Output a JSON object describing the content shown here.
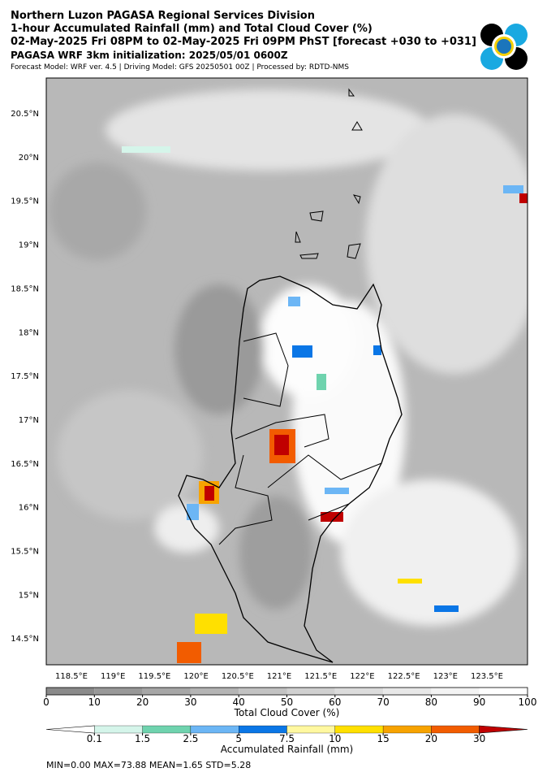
{
  "header": {
    "title": "Northern Luzon PAGASA Regional Services Division",
    "subtitle": "1-hour Accumulated Rainfall (mm) and Total Cloud Cover (%)",
    "period": "02-May-2025 Fri 08PM to 02-May-2025 Fri 09PM PhST [forecast +030 to +031]",
    "init": "PAGASA WRF 3km initialization: 2025/05/01 0600Z",
    "model": "Forecast Model: WRF ver. 4.5 | Driving Model: GFS 20250501 00Z | Processed by: RDTD-NMS"
  },
  "map": {
    "lat_labels": [
      "20.5°N",
      "20°N",
      "19.5°N",
      "19°N",
      "18.5°N",
      "18°N",
      "17.5°N",
      "17°N",
      "16.5°N",
      "16°N",
      "15.5°N",
      "15°N",
      "14.5°N"
    ],
    "lon_labels": [
      "118.5°E",
      "119°E",
      "119.5°E",
      "120°E",
      "120.5°E",
      "121°E",
      "121.5°E",
      "122°E",
      "122.5°E",
      "123°E",
      "123.5°E"
    ]
  },
  "cloud_bar": {
    "label": "Total Cloud Cover (%)",
    "range": [
      0,
      100
    ],
    "ticks": [
      0,
      10,
      20,
      30,
      40,
      50,
      60,
      70,
      80,
      90,
      100
    ],
    "colors": [
      "#8a8a8a",
      "#989898",
      "#a6a6a6",
      "#b4b4b4",
      "#c2c2c2",
      "#d0d0d0",
      "#dcdcdc",
      "#e8e8e8",
      "#f3f3f3",
      "#ffffff"
    ]
  },
  "rain_bar": {
    "label": "Accumulated Rainfall (mm)",
    "ticks": [
      0.1,
      1.5,
      2.5,
      5,
      7.5,
      10,
      15,
      20,
      30
    ],
    "colors": [
      "#ffffff",
      "#d5f5ea",
      "#6fd3ae",
      "#6cb6f5",
      "#0a76e6",
      "#fff8a0",
      "#ffe000",
      "#f7a300",
      "#f25c00",
      "#c00000"
    ]
  },
  "stats": "MIN=0.00   MAX=73.88   MEAN=1.65   STD=5.28"
}
